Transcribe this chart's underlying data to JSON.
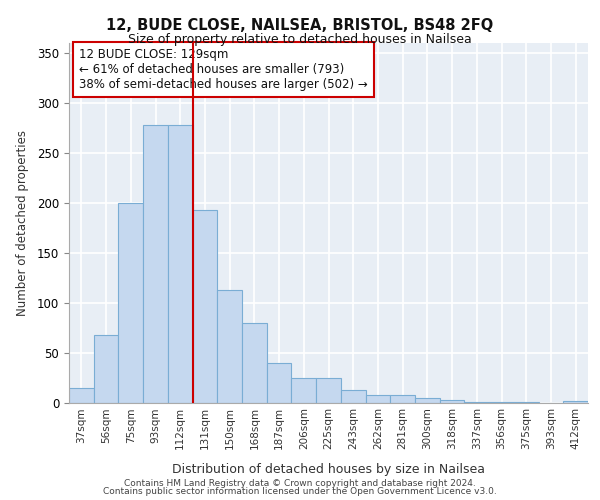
{
  "title": "12, BUDE CLOSE, NAILSEA, BRISTOL, BS48 2FQ",
  "subtitle": "Size of property relative to detached houses in Nailsea",
  "xlabel": "Distribution of detached houses by size in Nailsea",
  "ylabel": "Number of detached properties",
  "categories": [
    "37sqm",
    "56sqm",
    "75sqm",
    "93sqm",
    "112sqm",
    "131sqm",
    "150sqm",
    "168sqm",
    "187sqm",
    "206sqm",
    "225sqm",
    "243sqm",
    "262sqm",
    "281sqm",
    "300sqm",
    "318sqm",
    "337sqm",
    "356sqm",
    "375sqm",
    "393sqm",
    "412sqm"
  ],
  "values": [
    15,
    68,
    200,
    278,
    278,
    193,
    113,
    80,
    40,
    25,
    25,
    13,
    8,
    8,
    5,
    3,
    1,
    1,
    1,
    0,
    2
  ],
  "bar_color": "#c5d8ef",
  "bar_edge_color": "#7aadd4",
  "vline_color": "#cc0000",
  "vline_pos": 5,
  "annotation_text": "12 BUDE CLOSE: 129sqm\n← 61% of detached houses are smaller (793)\n38% of semi-detached houses are larger (502) →",
  "annotation_box_color": "#ffffff",
  "annotation_box_edge": "#cc0000",
  "ylim": [
    0,
    360
  ],
  "yticks": [
    0,
    50,
    100,
    150,
    200,
    250,
    300,
    350
  ],
  "background_color": "#e8eef5",
  "grid_color": "#ffffff",
  "footer_line1": "Contains HM Land Registry data © Crown copyright and database right 2024.",
  "footer_line2": "Contains public sector information licensed under the Open Government Licence v3.0."
}
